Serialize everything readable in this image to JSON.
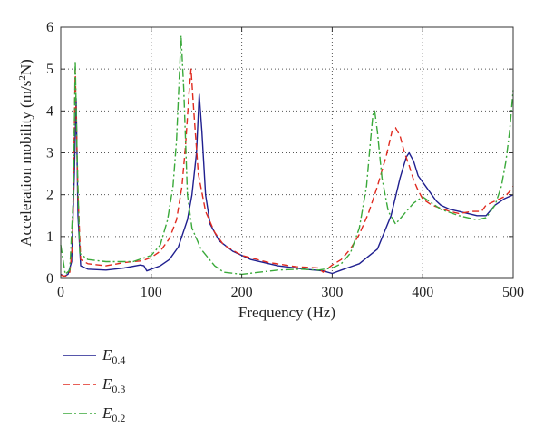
{
  "chart_data": {
    "type": "line",
    "title": "",
    "xlabel": "Frequency (Hz)",
    "ylabel_main": "Acceleration mobility (m/s",
    "ylabel_sup": "2",
    "ylabel_tail": "N)",
    "xlim": [
      0,
      500
    ],
    "ylim": [
      0,
      6
    ],
    "xticks": [
      0,
      100,
      200,
      300,
      400,
      500
    ],
    "yticks": [
      0,
      1,
      2,
      3,
      4,
      5,
      6
    ],
    "grid": "dotted",
    "legend_placement": "below",
    "series": [
      {
        "name_base": "E",
        "name_sub": "0.4",
        "color": "#1f1f8f",
        "dash": "solid",
        "points": [
          [
            0,
            0.1
          ],
          [
            4,
            0.05
          ],
          [
            8,
            0.1
          ],
          [
            12,
            0.4
          ],
          [
            15,
            2.5
          ],
          [
            17,
            4.3
          ],
          [
            19,
            1.5
          ],
          [
            22,
            0.3
          ],
          [
            30,
            0.22
          ],
          [
            50,
            0.2
          ],
          [
            70,
            0.25
          ],
          [
            88,
            0.32
          ],
          [
            92,
            0.3
          ],
          [
            95,
            0.18
          ],
          [
            100,
            0.22
          ],
          [
            110,
            0.3
          ],
          [
            120,
            0.45
          ],
          [
            130,
            0.75
          ],
          [
            140,
            1.4
          ],
          [
            145,
            2.0
          ],
          [
            150,
            3.0
          ],
          [
            153,
            4.4
          ],
          [
            156,
            3.5
          ],
          [
            160,
            2.0
          ],
          [
            165,
            1.3
          ],
          [
            175,
            0.9
          ],
          [
            190,
            0.65
          ],
          [
            210,
            0.45
          ],
          [
            240,
            0.3
          ],
          [
            270,
            0.22
          ],
          [
            290,
            0.18
          ],
          [
            300,
            0.12
          ],
          [
            310,
            0.2
          ],
          [
            330,
            0.35
          ],
          [
            350,
            0.7
          ],
          [
            365,
            1.5
          ],
          [
            375,
            2.4
          ],
          [
            382,
            2.9
          ],
          [
            385,
            3.0
          ],
          [
            390,
            2.8
          ],
          [
            395,
            2.45
          ],
          [
            400,
            2.3
          ],
          [
            410,
            2.0
          ],
          [
            415,
            1.85
          ],
          [
            420,
            1.75
          ],
          [
            425,
            1.7
          ],
          [
            430,
            1.65
          ],
          [
            440,
            1.6
          ],
          [
            450,
            1.55
          ],
          [
            460,
            1.5
          ],
          [
            470,
            1.5
          ],
          [
            480,
            1.75
          ],
          [
            490,
            1.9
          ],
          [
            500,
            2.0
          ]
        ]
      },
      {
        "name_base": "E",
        "name_sub": "0.3",
        "color": "#e02a1f",
        "dash": "7,4",
        "points": [
          [
            0,
            0.08
          ],
          [
            5,
            0.05
          ],
          [
            10,
            0.15
          ],
          [
            13,
            0.8
          ],
          [
            16,
            4.98
          ],
          [
            19,
            2.0
          ],
          [
            22,
            0.45
          ],
          [
            30,
            0.35
          ],
          [
            50,
            0.3
          ],
          [
            70,
            0.38
          ],
          [
            90,
            0.42
          ],
          [
            100,
            0.5
          ],
          [
            110,
            0.65
          ],
          [
            120,
            0.95
          ],
          [
            128,
            1.4
          ],
          [
            134,
            2.2
          ],
          [
            138,
            3.2
          ],
          [
            142,
            4.5
          ],
          [
            144,
            5.0
          ],
          [
            147,
            4.0
          ],
          [
            152,
            2.5
          ],
          [
            160,
            1.6
          ],
          [
            170,
            1.1
          ],
          [
            180,
            0.8
          ],
          [
            200,
            0.55
          ],
          [
            230,
            0.38
          ],
          [
            260,
            0.28
          ],
          [
            285,
            0.25
          ],
          [
            290,
            0.15
          ],
          [
            300,
            0.32
          ],
          [
            310,
            0.45
          ],
          [
            320,
            0.7
          ],
          [
            330,
            1.05
          ],
          [
            340,
            1.55
          ],
          [
            350,
            2.2
          ],
          [
            360,
            2.95
          ],
          [
            366,
            3.5
          ],
          [
            370,
            3.6
          ],
          [
            375,
            3.4
          ],
          [
            380,
            3.0
          ],
          [
            385,
            2.7
          ],
          [
            390,
            2.35
          ],
          [
            395,
            2.1
          ],
          [
            400,
            1.9
          ],
          [
            410,
            1.75
          ],
          [
            430,
            1.6
          ],
          [
            440,
            1.55
          ],
          [
            455,
            1.6
          ],
          [
            465,
            1.6
          ],
          [
            470,
            1.75
          ],
          [
            480,
            1.85
          ],
          [
            490,
            1.95
          ],
          [
            495,
            2.05
          ],
          [
            500,
            2.2
          ]
        ]
      },
      {
        "name_base": "E",
        "name_sub": "0.2",
        "color": "#3aa93a",
        "dash": "9,3,2,3",
        "points": [
          [
            0,
            0.8
          ],
          [
            5,
            0.1
          ],
          [
            10,
            0.2
          ],
          [
            14,
            2.0
          ],
          [
            16,
            5.2
          ],
          [
            18,
            3.0
          ],
          [
            21,
            0.6
          ],
          [
            30,
            0.45
          ],
          [
            50,
            0.4
          ],
          [
            80,
            0.4
          ],
          [
            100,
            0.55
          ],
          [
            110,
            0.8
          ],
          [
            118,
            1.4
          ],
          [
            124,
            2.2
          ],
          [
            128,
            3.3
          ],
          [
            131,
            4.8
          ],
          [
            133,
            5.8
          ],
          [
            136,
            4.5
          ],
          [
            140,
            2.0
          ],
          [
            145,
            1.2
          ],
          [
            155,
            0.7
          ],
          [
            170,
            0.3
          ],
          [
            180,
            0.15
          ],
          [
            200,
            0.1
          ],
          [
            220,
            0.15
          ],
          [
            240,
            0.2
          ],
          [
            265,
            0.22
          ],
          [
            285,
            0.2
          ],
          [
            300,
            0.25
          ],
          [
            310,
            0.35
          ],
          [
            320,
            0.6
          ],
          [
            330,
            1.2
          ],
          [
            338,
            2.2
          ],
          [
            342,
            3.2
          ],
          [
            345,
            3.9
          ],
          [
            347,
            4.0
          ],
          [
            350,
            3.5
          ],
          [
            355,
            2.4
          ],
          [
            362,
            1.6
          ],
          [
            370,
            1.3
          ],
          [
            380,
            1.55
          ],
          [
            390,
            1.8
          ],
          [
            400,
            1.95
          ],
          [
            410,
            1.8
          ],
          [
            420,
            1.65
          ],
          [
            440,
            1.5
          ],
          [
            460,
            1.4
          ],
          [
            470,
            1.45
          ],
          [
            480,
            1.75
          ],
          [
            487,
            2.2
          ],
          [
            492,
            2.8
          ],
          [
            496,
            3.5
          ],
          [
            500,
            4.5
          ]
        ]
      }
    ]
  }
}
